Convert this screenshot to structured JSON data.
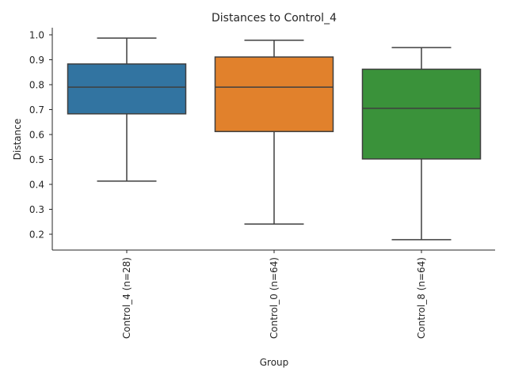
{
  "chart_data": {
    "type": "box",
    "title": "Distances to Control_4",
    "xlabel": "Group",
    "ylabel": "Distance",
    "ylim": [
      0.135,
      1.03
    ],
    "yticks": [
      0.2,
      0.3,
      0.4,
      0.5,
      0.6,
      0.7,
      0.8,
      0.9,
      1.0
    ],
    "ytick_labels": [
      "0.2",
      "0.3",
      "0.4",
      "0.5",
      "0.6",
      "0.7",
      "0.8",
      "0.9",
      "1.0"
    ],
    "grid": false,
    "categories": [
      "Control_4 (n=28)",
      "Control_0 (n=64)",
      "Control_8 (n=64)"
    ],
    "series": [
      {
        "name": "Control_4 (n=28)",
        "color": "#3274a1",
        "whisker_low": 0.413,
        "q1": 0.683,
        "median": 0.79,
        "q3": 0.883,
        "whisker_high": 0.987
      },
      {
        "name": "Control_0 (n=64)",
        "color": "#e1812c",
        "whisker_low": 0.241,
        "q1": 0.612,
        "median": 0.79,
        "q3": 0.911,
        "whisker_high": 0.978
      },
      {
        "name": "Control_8 (n=64)",
        "color": "#3a923a",
        "whisker_low": 0.178,
        "q1": 0.502,
        "median": 0.705,
        "q3": 0.862,
        "whisker_high": 0.949
      }
    ]
  }
}
